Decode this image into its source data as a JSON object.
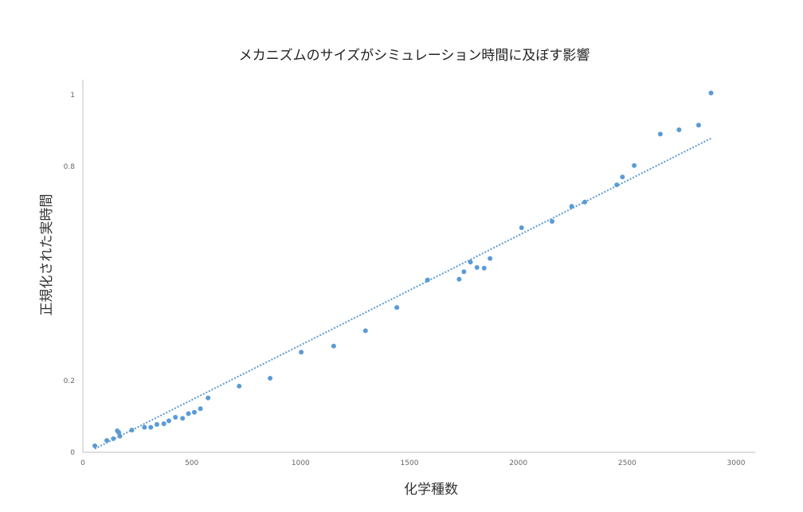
{
  "chart_data": {
    "type": "scatter",
    "title": "メカニズムのサイズがシミュレーション時間に及ぼす影響",
    "xlabel": "化学種数",
    "ylabel": "正規化された実時間",
    "xlim": [
      0,
      3000
    ],
    "ylim": [
      0,
      1
    ],
    "x_ticks": [
      "0",
      "500",
      "1000",
      "1500",
      "2000",
      "2500",
      "3000"
    ],
    "y_ticks": [
      {
        "value": 0,
        "label": "0"
      },
      {
        "value": 0.2,
        "label": "0.2"
      },
      {
        "value": 0.8,
        "label": "0.8"
      },
      {
        "value": 1,
        "label": "1"
      }
    ],
    "grid": false,
    "legend": "none",
    "colors": {
      "points": "#5b9bd5",
      "trendline": "#5b9bd5",
      "axis": "#bfbfbf"
    },
    "series": [
      {
        "x": [
          55,
          110,
          140,
          158,
          165,
          170,
          225,
          283,
          312,
          340,
          372,
          395,
          425,
          458,
          485,
          512,
          540,
          575,
          718,
          860,
          1003,
          1152,
          1298,
          1442,
          1583,
          1728,
          1750,
          1780,
          1810,
          1843,
          1870,
          2015,
          2155,
          2245,
          2305,
          2452,
          2478,
          2532,
          2652,
          2738,
          2828,
          2885
        ],
        "y": [
          0.018,
          0.033,
          0.038,
          0.06,
          0.055,
          0.045,
          0.062,
          0.07,
          0.07,
          0.078,
          0.08,
          0.088,
          0.098,
          0.095,
          0.108,
          0.112,
          0.122,
          0.152,
          0.185,
          0.207,
          0.28,
          0.297,
          0.34,
          0.405,
          0.482,
          0.484,
          0.505,
          0.532,
          0.517,
          0.515,
          0.542,
          0.628,
          0.646,
          0.688,
          0.7,
          0.748,
          0.77,
          0.802,
          0.89,
          0.902,
          0.915,
          1.005
        ]
      }
    ],
    "trendline": {
      "type": "linear",
      "x": [
        55,
        2885
      ],
      "y": [
        0.01,
        0.878
      ]
    }
  }
}
